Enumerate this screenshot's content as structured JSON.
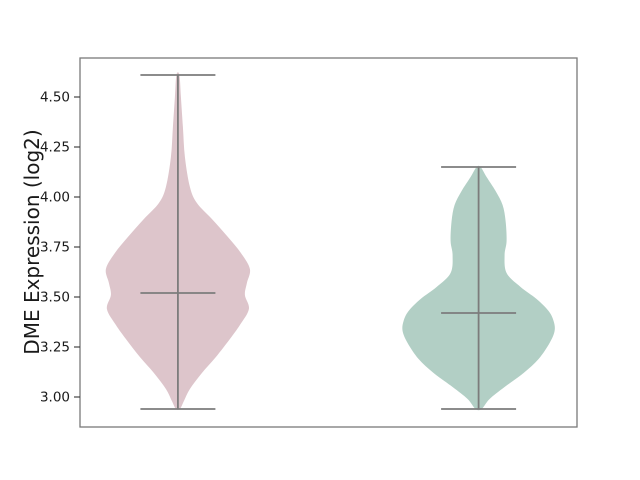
{
  "figure": {
    "background": "#ffffff"
  },
  "chart_data": {
    "type": "violin",
    "title": "",
    "xlabel": "",
    "ylabel": "DME Expression (log2)",
    "ylim": [
      2.85,
      4.695
    ],
    "yticks": [
      3.0,
      3.25,
      3.5,
      3.75,
      4.0,
      4.25,
      4.5
    ],
    "ytick_labels": [
      "3.00",
      "3.25",
      "3.50",
      "3.75",
      "4.00",
      "4.25",
      "4.50"
    ],
    "xtick_labels": [],
    "grid": false,
    "legend": null,
    "axis_color": "#7a7a7a",
    "tick_mark_color": "#333333",
    "tick_label_color": "#1a1a1a",
    "inner_line_color": "#7c7c7c",
    "series": [
      {
        "name": "left-violin",
        "fill_color": "#ddc5cb",
        "x_frac": 0.197,
        "stats": {
          "min": 2.94,
          "max": 4.61,
          "median": 3.52
        },
        "profile": [
          [
            4.61,
            1.5
          ],
          [
            4.5,
            3
          ],
          [
            4.35,
            5
          ],
          [
            4.2,
            7
          ],
          [
            4.05,
            12
          ],
          [
            3.97,
            19
          ],
          [
            3.89,
            34
          ],
          [
            3.8,
            50
          ],
          [
            3.72,
            63
          ],
          [
            3.64,
            72
          ],
          [
            3.57,
            69
          ],
          [
            3.51,
            67
          ],
          [
            3.44,
            71
          ],
          [
            3.36,
            62
          ],
          [
            3.29,
            52
          ],
          [
            3.2,
            38
          ],
          [
            3.12,
            24
          ],
          [
            3.04,
            12
          ],
          [
            2.98,
            6
          ],
          [
            2.94,
            2
          ]
        ]
      },
      {
        "name": "right-violin",
        "fill_color": "#b2cfc5",
        "x_frac": 0.802,
        "stats": {
          "min": 2.94,
          "max": 4.15,
          "median": 3.42
        },
        "profile": [
          [
            4.15,
            2
          ],
          [
            4.1,
            8
          ],
          [
            4.03,
            17
          ],
          [
            3.96,
            24
          ],
          [
            3.88,
            27
          ],
          [
            3.78,
            28
          ],
          [
            3.71,
            26
          ],
          [
            3.62,
            28
          ],
          [
            3.55,
            42
          ],
          [
            3.49,
            58
          ],
          [
            3.43,
            70
          ],
          [
            3.38,
            75
          ],
          [
            3.33,
            76
          ],
          [
            3.27,
            71
          ],
          [
            3.19,
            60
          ],
          [
            3.12,
            45
          ],
          [
            3.05,
            26
          ],
          [
            2.99,
            11
          ],
          [
            2.94,
            3
          ]
        ]
      }
    ]
  }
}
